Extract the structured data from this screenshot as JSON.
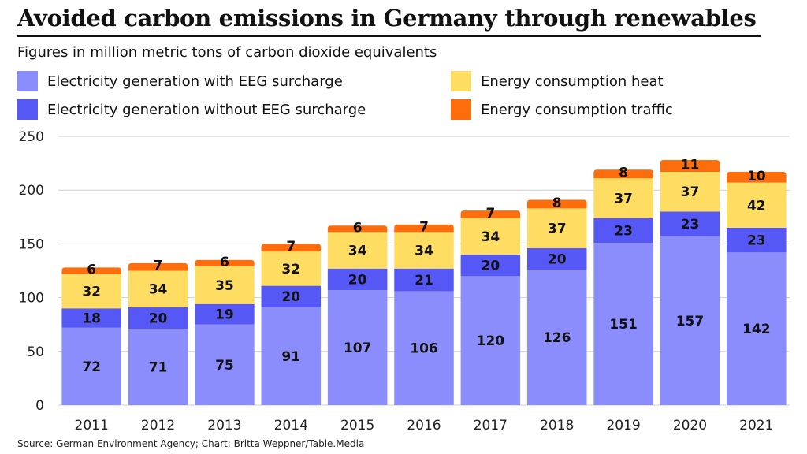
{
  "title": "Avoided carbon emissions in Germany through renewables",
  "subtitle": "Figures in million metric tons of carbon dioxide equivalents",
  "source": "Source: German Environment Agency; Chart: Britta Weppner/Table.Media",
  "colors": {
    "eeg": "#8b8dfc",
    "no_eeg": "#5558f5",
    "heat": "#fedd62",
    "traffic": "#fd6d0b",
    "grid": "#cfcfcf"
  },
  "chart_data": {
    "type": "bar",
    "stacked": true,
    "categories": [
      "2011",
      "2012",
      "2013",
      "2014",
      "2015",
      "2016",
      "2017",
      "2018",
      "2019",
      "2020",
      "2021"
    ],
    "series": [
      {
        "name": "Electricity generation with EEG surcharge",
        "values": [
          72,
          71,
          75,
          91,
          107,
          106,
          120,
          126,
          151,
          157,
          142
        ]
      },
      {
        "name": "Electricity generation without EEG surcharge",
        "values": [
          18,
          20,
          19,
          20,
          20,
          21,
          20,
          20,
          23,
          23,
          23
        ]
      },
      {
        "name": "Energy consumption heat",
        "values": [
          32,
          34,
          35,
          32,
          34,
          34,
          34,
          37,
          37,
          37,
          42
        ]
      },
      {
        "name": "Energy consumption traffic",
        "values": [
          6,
          7,
          6,
          7,
          6,
          7,
          7,
          8,
          8,
          11,
          10
        ]
      }
    ],
    "yticks": [
      0,
      50,
      100,
      150,
      200,
      250
    ],
    "ylim": [
      0,
      250
    ],
    "grid": true,
    "legend": "top"
  }
}
